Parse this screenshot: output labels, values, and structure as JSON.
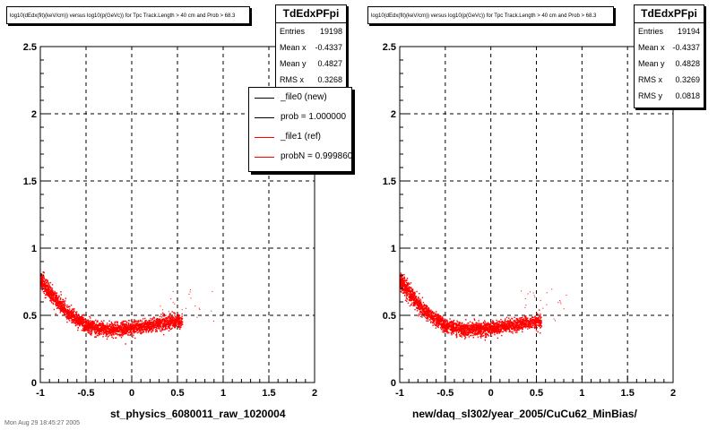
{
  "footer": "Mon Aug 29 18:45:27 2005",
  "chart_data": [
    {
      "type": "scatter",
      "title": "log10(dEdx(fit)(keV/cm)) versus log10(p(GeVc)) for Tpc Track.Length > 40 cm and Prob > 68.3",
      "xlabel": "st_physics_6080011_raw_1020004",
      "ylabel": "",
      "xlim": [
        -1,
        2
      ],
      "ylim": [
        0,
        2.5
      ],
      "x_ticks": [
        "-1",
        "-0.5",
        "0",
        "0.5",
        "1",
        "1.5",
        "2"
      ],
      "y_ticks": [
        "0",
        "0.5",
        "1",
        "1.5",
        "2",
        "2.5"
      ],
      "grid": true,
      "marker_color": "#ff0000",
      "band": {
        "x": [
          -1.0,
          -0.9,
          -0.8,
          -0.7,
          -0.6,
          -0.5,
          -0.4,
          -0.3,
          -0.2,
          -0.1,
          0.0,
          0.1,
          0.2,
          0.3,
          0.4,
          0.5
        ],
        "y": [
          0.76,
          0.67,
          0.59,
          0.52,
          0.47,
          0.43,
          0.41,
          0.4,
          0.4,
          0.4,
          0.41,
          0.42,
          0.43,
          0.44,
          0.45,
          0.46
        ]
      },
      "stats": {
        "name": "TdEdxPFpi",
        "rows": [
          {
            "key": "Entries",
            "value": "19198"
          },
          {
            "key": "Mean x",
            "value": "-0.4337"
          },
          {
            "key": "Mean y",
            "value": "0.4827"
          },
          {
            "key": "RMS x",
            "value": "0.3268"
          }
        ]
      },
      "legend": {
        "placement": "top-right",
        "entries": [
          {
            "label": "_file0 (new)",
            "color": "#000000"
          },
          {
            "label": "prob = 1.000000",
            "color": "#000000"
          },
          {
            "label": "_file1 (ref)",
            "color": "#ff0000"
          },
          {
            "label": "probN = 0.999860",
            "color": "#ff0000"
          }
        ]
      }
    },
    {
      "type": "scatter",
      "title": "log10(dEdx(fit)(keV/cm)) versus log10(p(GeVc)) for Tpc Track.Length > 40 cm and Prob > 68.3",
      "xlabel": "new/daq_sl302/year_2005/CuCu62_MinBias/",
      "ylabel": "",
      "xlim": [
        -1,
        2
      ],
      "ylim": [
        0,
        2.5
      ],
      "x_ticks": [
        "-1",
        "-0.5",
        "0",
        "0.5",
        "1",
        "1.5",
        "2"
      ],
      "y_ticks": [
        "0",
        "0.5",
        "1",
        "1.5",
        "2",
        "2.5"
      ],
      "grid": true,
      "marker_color": "#ff0000",
      "band": {
        "x": [
          -1.0,
          -0.9,
          -0.8,
          -0.7,
          -0.6,
          -0.5,
          -0.4,
          -0.3,
          -0.2,
          -0.1,
          0.0,
          0.1,
          0.2,
          0.3,
          0.4,
          0.5
        ],
        "y": [
          0.76,
          0.67,
          0.59,
          0.52,
          0.47,
          0.43,
          0.41,
          0.4,
          0.4,
          0.4,
          0.41,
          0.42,
          0.43,
          0.44,
          0.45,
          0.46
        ]
      },
      "stats": {
        "name": "TdEdxPFpi",
        "rows": [
          {
            "key": "Entries",
            "value": "19194"
          },
          {
            "key": "Mean x",
            "value": "-0.4337"
          },
          {
            "key": "Mean y",
            "value": "0.4828"
          },
          {
            "key": "RMS x",
            "value": "0.3269"
          },
          {
            "key": "RMS y",
            "value": "0.0818"
          }
        ]
      }
    }
  ]
}
